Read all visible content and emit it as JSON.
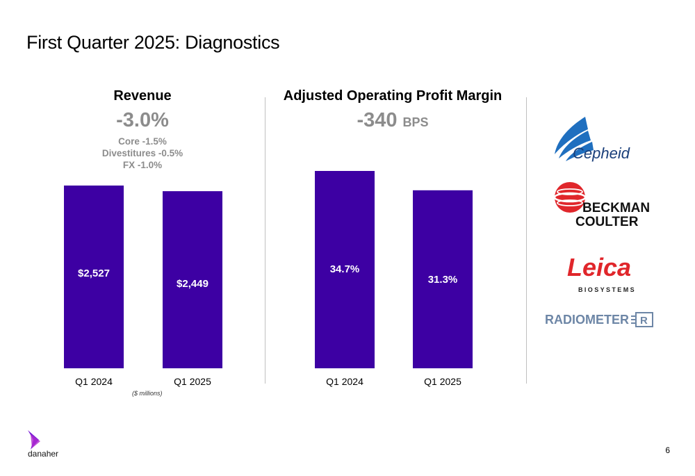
{
  "slide": {
    "title": "First Quarter 2025: Diagnostics",
    "page_number": "6",
    "footnote": "($ millions)"
  },
  "panels": [
    {
      "heading": "Revenue",
      "metric": "-3.0%",
      "details": [
        "Core -1.5%",
        "Divestitures -0.5%",
        "FX -1.0%"
      ]
    },
    {
      "heading": "Adjusted Operating Profit Margin",
      "metric": "-340",
      "metric_unit": "BPS"
    }
  ],
  "chart_data": [
    {
      "type": "bar",
      "categories": [
        "Q1 2024",
        "Q1 2025"
      ],
      "values": [
        2527,
        2449
      ],
      "value_labels": [
        "$2,527",
        "$2,449"
      ],
      "ylim": [
        0,
        2800
      ],
      "color": "#3d00a3"
    },
    {
      "type": "bar",
      "categories": [
        "Q1 2024",
        "Q1 2025"
      ],
      "values": [
        34.7,
        31.3
      ],
      "value_labels": [
        "34.7%",
        "31.3%"
      ],
      "ylim": [
        0,
        38
      ],
      "color": "#3d00a3"
    }
  ],
  "logos": {
    "cepheid": "Cepheid",
    "beckman": [
      "BECKMAN",
      "COULTER"
    ],
    "leica": [
      "Leica",
      "BIOSYSTEMS"
    ],
    "radiometer": "RADIOMETER",
    "danaher": "danaher"
  },
  "colors": {
    "bar": "#3d00a3",
    "muted_text": "#8c8c8c",
    "cepheid_blue": "#1f6fbf",
    "beckman_red": "#e0262b",
    "radiometer_blue": "#6d86a6"
  }
}
